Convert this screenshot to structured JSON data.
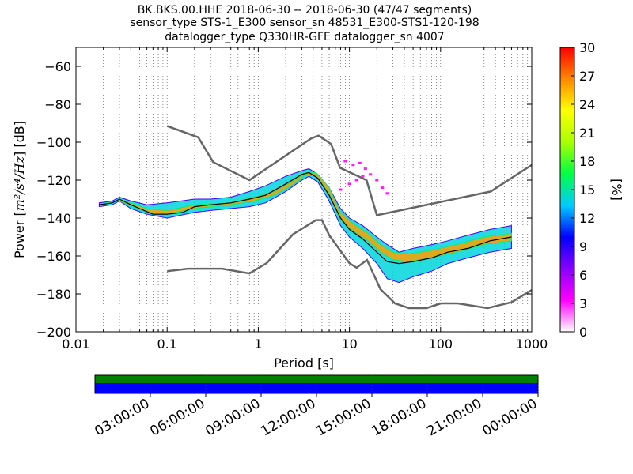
{
  "chart_data": [
    {
      "type": "heatmap",
      "title_lines": [
        "BK.BKS.00.HHE   2018-06-30 -- 2018-06-30  (47/47 segments)",
        "sensor_type STS-1_E300 sensor_sn 48531_E300-STS1-120-198",
        "datalogger_type Q330HR-GFE datalogger_sn 4007"
      ],
      "xlabel": "Period [s]",
      "ylabel_prefix": "Power [",
      "ylabel_math": "m²/s⁴/Hz",
      "ylabel_suffix": "] [dB]",
      "x_scale": "log",
      "xlim": [
        0.01,
        1000
      ],
      "ylim": [
        -200,
        -50
      ],
      "x_tick_values": [
        0.01,
        0.1,
        1,
        10,
        100,
        1000
      ],
      "x_tick_labels": [
        "0.01",
        "0.1",
        "1",
        "10",
        "100",
        "1000"
      ],
      "y_tick_values": [
        -200,
        -180,
        -160,
        -140,
        -120,
        -100,
        -80,
        -60
      ],
      "y_tick_labels": [
        "−200",
        "−180",
        "−160",
        "−140",
        "−120",
        "−100",
        "−80",
        "−60"
      ],
      "grid": "dotted vertical at log minor ticks, x",
      "colorbar": {
        "label": "[%]",
        "range": [
          0,
          30
        ],
        "tick_values": [
          0,
          3,
          6,
          9,
          12,
          15,
          18,
          21,
          24,
          27,
          30
        ],
        "tick_labels": [
          "0",
          "3",
          "6",
          "9",
          "12",
          "15",
          "18",
          "21",
          "24",
          "27",
          "30"
        ],
        "stops": [
          "#ffffff",
          "#ff00ff",
          "#8800ff",
          "#0000ff",
          "#00ccff",
          "#00ff44",
          "#aaff00",
          "#ffff00",
          "#ff8800",
          "#ff0000"
        ]
      },
      "noise_models": {
        "high": {
          "x": [
            0.1,
            0.22,
            0.32,
            0.8,
            3.8,
            4.6,
            6.3,
            7.9,
            15.4,
            20,
            354.8,
            1000
          ],
          "y": [
            -91.5,
            -97.4,
            -110.5,
            -120,
            -98,
            -96.5,
            -101,
            -113.5,
            -120,
            -138.5,
            -126,
            -112
          ]
        },
        "low": {
          "x": [
            0.1,
            0.17,
            0.4,
            0.8,
            1.24,
            2.4,
            4.3,
            5,
            6,
            10,
            12,
            15.6,
            21.9,
            31.6,
            45,
            70,
            101,
            154,
            328,
            600,
            1000
          ],
          "y": [
            -168,
            -166.7,
            -166.7,
            -169.2,
            -163.7,
            -148.6,
            -141.1,
            -141.1,
            -149,
            -163.8,
            -166.2,
            -162.1,
            -177.5,
            -185,
            -187.5,
            -187.5,
            -185,
            -185,
            -187.5,
            -184.4,
            -178
          ]
        }
      },
      "mean_psd": {
        "x": [
          0.018,
          0.025,
          0.03,
          0.04,
          0.05,
          0.07,
          0.1,
          0.15,
          0.2,
          0.3,
          0.5,
          0.8,
          1.2,
          2,
          3,
          3.6,
          4.5,
          6,
          8,
          10,
          14,
          20,
          26,
          35,
          50,
          80,
          120,
          200,
          350,
          600
        ],
        "y": [
          -133,
          -132,
          -130,
          -133,
          -135,
          -138,
          -138,
          -137,
          -134,
          -133,
          -132,
          -130,
          -128,
          -122,
          -117,
          -116,
          -119,
          -128,
          -140,
          -146,
          -151,
          -158,
          -163,
          -164,
          -163,
          -161,
          -158,
          -156,
          -152,
          -150
        ]
      },
      "psd_bands": [
        {
          "x": [
            0.018,
            0.025,
            0.03,
            0.04,
            0.06,
            0.1,
            0.2,
            0.3,
            0.5,
            0.8,
            1.2,
            2,
            3,
            3.6,
            4.5,
            6,
            8,
            10,
            14,
            20,
            26,
            35,
            50,
            80,
            120,
            200,
            350,
            600
          ],
          "y_low": [
            -134,
            -133,
            -131,
            -135,
            -138,
            -140,
            -137,
            -136,
            -135,
            -134,
            -132,
            -126,
            -120,
            -118,
            -121,
            -131,
            -144,
            -150,
            -156,
            -164,
            -172,
            -174,
            -171,
            -168,
            -164,
            -161,
            -158,
            -156
          ],
          "y_high": [
            -132,
            -131,
            -129,
            -131,
            -133,
            -132,
            -130,
            -130,
            -129,
            -126,
            -123,
            -118,
            -115,
            -114,
            -117,
            -124,
            -135,
            -140,
            -144,
            -150,
            -154,
            -158,
            -156,
            -154,
            -152,
            -149,
            -146,
            -144
          ],
          "percent": 14
        },
        {
          "x": [
            0.03,
            0.06,
            0.1,
            0.2,
            0.5,
            0.9,
            1.5,
            2.5,
            3.3,
            4.3,
            6,
            8,
            11,
            16,
            22,
            30,
            45,
            80,
            150,
            300,
            600
          ],
          "y_low": [
            -131,
            -137,
            -138,
            -135,
            -133,
            -131,
            -128,
            -122,
            -117,
            -118,
            -127,
            -141,
            -147,
            -152,
            -158,
            -162,
            -163,
            -161,
            -158,
            -154,
            -152
          ],
          "y_high": [
            -130,
            -135,
            -136,
            -133,
            -132,
            -129,
            -126,
            -120,
            -116,
            -116,
            -124,
            -137,
            -143,
            -148,
            -154,
            -158,
            -159,
            -157,
            -154,
            -150,
            -148
          ],
          "percent": 26
        }
      ],
      "psd_scatter": {
        "x": [
          9,
          11,
          13,
          15,
          17,
          20,
          23,
          26,
          8,
          10,
          12,
          14
        ],
        "y": [
          -110,
          -112,
          -111,
          -114,
          -117,
          -120,
          -124,
          -127,
          -125,
          -122,
          -120,
          -118
        ],
        "percent": 3
      }
    },
    {
      "type": "bar",
      "role": "data-coverage",
      "x_tick_labels": [
        "03:00:00",
        "06:00:00",
        "09:00:00",
        "12:00:00",
        "15:00:00",
        "18:00:00",
        "21:00:00",
        "00:00:00"
      ],
      "bands": [
        {
          "color": "#008000",
          "fraction_of_height": 0.4
        },
        {
          "color": "#0000ff",
          "fraction_of_height": 0.6
        }
      ]
    }
  ]
}
